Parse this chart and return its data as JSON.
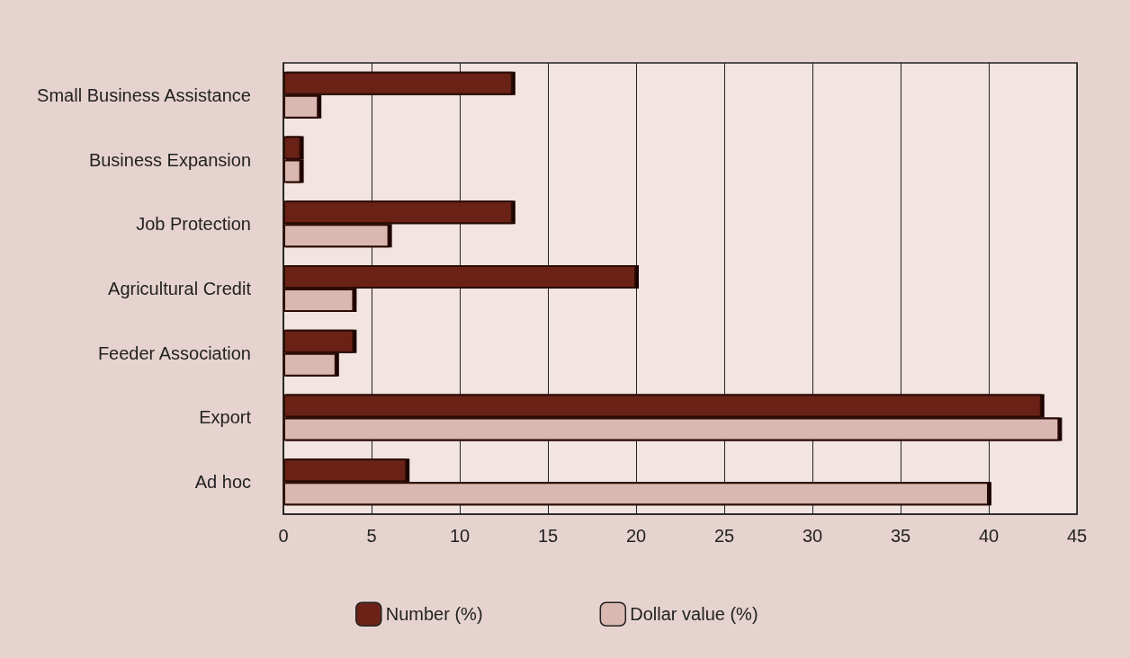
{
  "chart_data": {
    "type": "bar",
    "orientation": "horizontal",
    "categories": [
      "Small Business Assistance",
      "Business Expansion",
      "Job Protection",
      "Agricultural Credit",
      "Feeder Association",
      "Export",
      "Ad hoc"
    ],
    "series": [
      {
        "name": "Number (%)",
        "color": "#6b2318",
        "values": [
          13,
          1,
          13,
          20,
          4,
          43,
          7
        ]
      },
      {
        "name": "Dollar value (%)",
        "color": "#d8b8b0",
        "values": [
          2,
          1,
          6,
          4,
          3,
          44,
          40
        ]
      }
    ],
    "xlim": [
      0,
      45
    ],
    "xticks": [
      0,
      5,
      10,
      15,
      20,
      25,
      30,
      35,
      40,
      45
    ],
    "grid": "x",
    "legend": "bottom"
  }
}
